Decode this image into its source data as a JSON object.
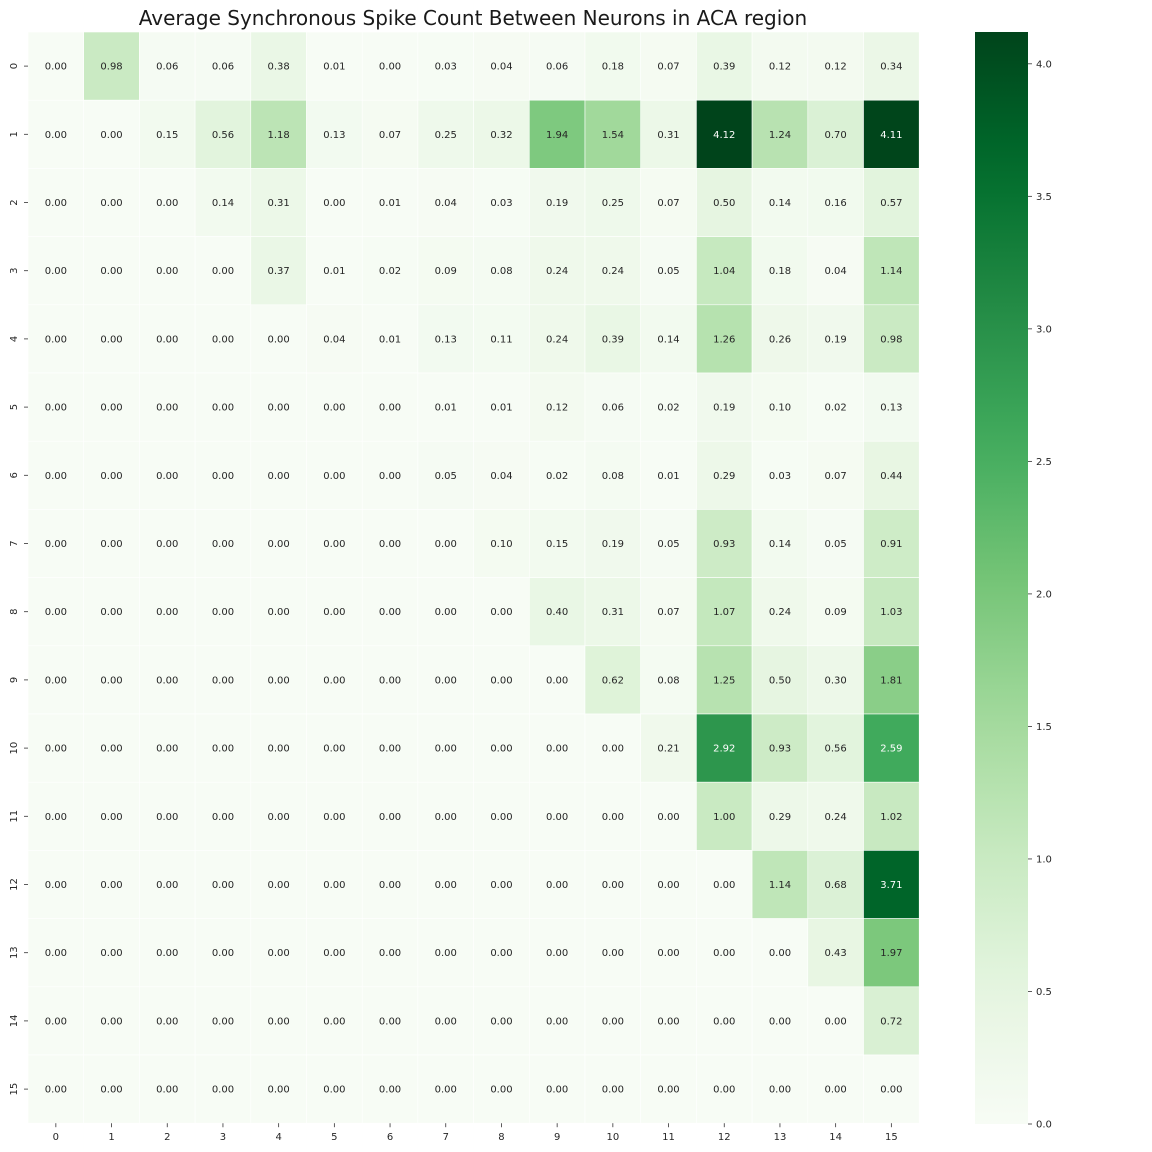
{
  "chart_data": {
    "type": "heatmap",
    "title": "Average Synchronous Spike Count Between Neurons in ACA region",
    "xlabel": "",
    "ylabel": "",
    "x_categories": [
      "0",
      "1",
      "2",
      "3",
      "4",
      "5",
      "6",
      "7",
      "8",
      "9",
      "10",
      "11",
      "12",
      "13",
      "14",
      "15"
    ],
    "y_categories": [
      "0",
      "1",
      "2",
      "3",
      "4",
      "5",
      "6",
      "7",
      "8",
      "9",
      "10",
      "11",
      "12",
      "13",
      "14",
      "15"
    ],
    "values": [
      [
        0.0,
        0.98,
        0.06,
        0.06,
        0.38,
        0.01,
        0.0,
        0.03,
        0.04,
        0.06,
        0.18,
        0.07,
        0.39,
        0.12,
        0.12,
        0.34
      ],
      [
        0.0,
        0.0,
        0.15,
        0.56,
        1.18,
        0.13,
        0.07,
        0.25,
        0.32,
        1.94,
        1.54,
        0.31,
        4.12,
        1.24,
        0.7,
        4.11
      ],
      [
        0.0,
        0.0,
        0.0,
        0.14,
        0.31,
        0.0,
        0.01,
        0.04,
        0.03,
        0.19,
        0.25,
        0.07,
        0.5,
        0.14,
        0.16,
        0.57
      ],
      [
        0.0,
        0.0,
        0.0,
        0.0,
        0.37,
        0.01,
        0.02,
        0.09,
        0.08,
        0.24,
        0.24,
        0.05,
        1.04,
        0.18,
        0.04,
        1.14
      ],
      [
        0.0,
        0.0,
        0.0,
        0.0,
        0.0,
        0.04,
        0.01,
        0.13,
        0.11,
        0.24,
        0.39,
        0.14,
        1.26,
        0.26,
        0.19,
        0.98
      ],
      [
        0.0,
        0.0,
        0.0,
        0.0,
        0.0,
        0.0,
        0.0,
        0.01,
        0.01,
        0.12,
        0.06,
        0.02,
        0.19,
        0.1,
        0.02,
        0.13
      ],
      [
        0.0,
        0.0,
        0.0,
        0.0,
        0.0,
        0.0,
        0.0,
        0.05,
        0.04,
        0.02,
        0.08,
        0.01,
        0.29,
        0.03,
        0.07,
        0.44
      ],
      [
        0.0,
        0.0,
        0.0,
        0.0,
        0.0,
        0.0,
        0.0,
        0.0,
        0.1,
        0.15,
        0.19,
        0.05,
        0.93,
        0.14,
        0.05,
        0.91
      ],
      [
        0.0,
        0.0,
        0.0,
        0.0,
        0.0,
        0.0,
        0.0,
        0.0,
        0.0,
        0.4,
        0.31,
        0.07,
        1.07,
        0.24,
        0.09,
        1.03
      ],
      [
        0.0,
        0.0,
        0.0,
        0.0,
        0.0,
        0.0,
        0.0,
        0.0,
        0.0,
        0.0,
        0.62,
        0.08,
        1.25,
        0.5,
        0.3,
        1.81
      ],
      [
        0.0,
        0.0,
        0.0,
        0.0,
        0.0,
        0.0,
        0.0,
        0.0,
        0.0,
        0.0,
        0.0,
        0.21,
        2.92,
        0.93,
        0.56,
        2.59
      ],
      [
        0.0,
        0.0,
        0.0,
        0.0,
        0.0,
        0.0,
        0.0,
        0.0,
        0.0,
        0.0,
        0.0,
        0.0,
        1.0,
        0.29,
        0.24,
        1.02
      ],
      [
        0.0,
        0.0,
        0.0,
        0.0,
        0.0,
        0.0,
        0.0,
        0.0,
        0.0,
        0.0,
        0.0,
        0.0,
        0.0,
        1.14,
        0.68,
        3.71
      ],
      [
        0.0,
        0.0,
        0.0,
        0.0,
        0.0,
        0.0,
        0.0,
        0.0,
        0.0,
        0.0,
        0.0,
        0.0,
        0.0,
        0.0,
        0.43,
        1.97
      ],
      [
        0.0,
        0.0,
        0.0,
        0.0,
        0.0,
        0.0,
        0.0,
        0.0,
        0.0,
        0.0,
        0.0,
        0.0,
        0.0,
        0.0,
        0.0,
        0.72
      ],
      [
        0.0,
        0.0,
        0.0,
        0.0,
        0.0,
        0.0,
        0.0,
        0.0,
        0.0,
        0.0,
        0.0,
        0.0,
        0.0,
        0.0,
        0.0,
        0.0
      ]
    ],
    "value_format": "0.00",
    "colormap": "Greens",
    "color_low": "#f7fcf5",
    "color_high": "#00441b",
    "cell_border_color": "#ffffff",
    "vmin": 0.0,
    "vmax": 4.12,
    "colorbar_ticks": [
      "0.0",
      "0.5",
      "1.0",
      "1.5",
      "2.0",
      "2.5",
      "3.0",
      "3.5",
      "4.0"
    ],
    "grid": false,
    "legend": "colorbar-right"
  }
}
